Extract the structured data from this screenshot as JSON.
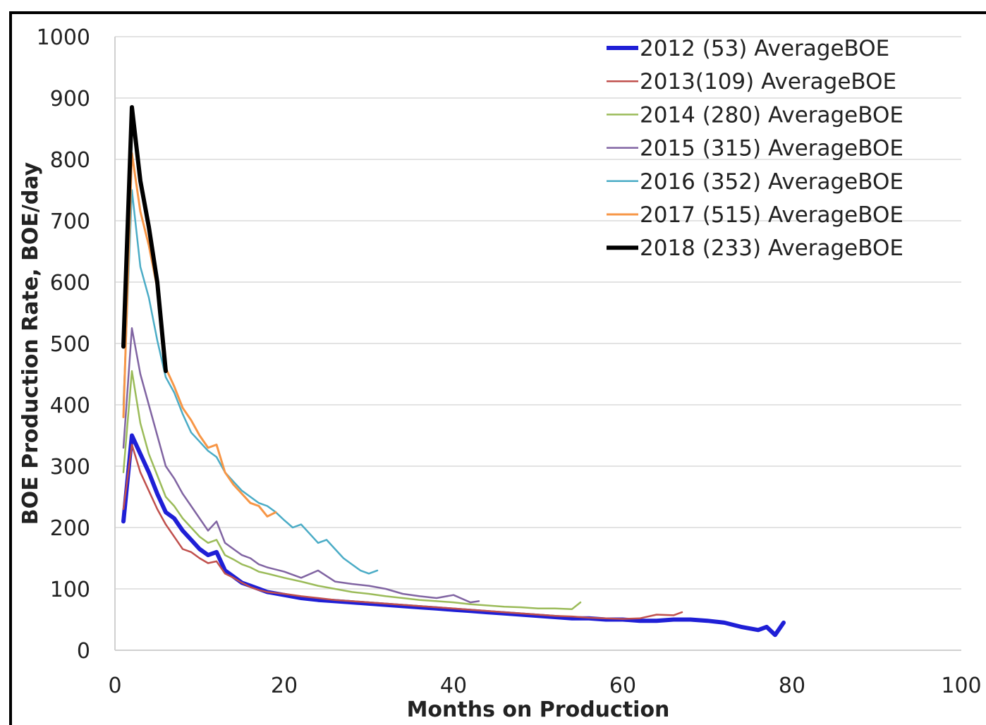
{
  "chart_data": {
    "type": "line",
    "title": "",
    "xlabel": "Months on Production",
    "ylabel": "BOE Production Rate, BOE/day",
    "xlim": [
      0,
      100
    ],
    "ylim": [
      0,
      1000
    ],
    "x_ticks": [
      "0",
      "20",
      "40",
      "60",
      "80",
      "100"
    ],
    "y_ticks": [
      "0",
      "100",
      "200",
      "300",
      "400",
      "500",
      "600",
      "700",
      "800",
      "900",
      "1000"
    ],
    "grid": "horizontal",
    "legend_position": "top-right",
    "series": [
      {
        "name": "2012 (53) AverageBOE",
        "color": "#1f1fd6",
        "width": 6,
        "x": [
          1,
          2,
          3,
          4,
          5,
          6,
          7,
          8,
          9,
          10,
          11,
          12,
          13,
          14,
          15,
          16,
          17,
          18,
          20,
          22,
          24,
          26,
          28,
          30,
          32,
          34,
          36,
          38,
          40,
          42,
          44,
          46,
          48,
          50,
          52,
          54,
          56,
          58,
          60,
          62,
          64,
          66,
          68,
          70,
          72,
          74,
          76,
          77,
          78,
          79
        ],
        "y": [
          210,
          350,
          320,
          290,
          255,
          225,
          215,
          195,
          180,
          165,
          155,
          160,
          130,
          120,
          110,
          105,
          100,
          95,
          90,
          85,
          82,
          80,
          78,
          76,
          74,
          72,
          70,
          68,
          66,
          64,
          62,
          60,
          58,
          56,
          54,
          52,
          52,
          50,
          50,
          48,
          48,
          50,
          50,
          48,
          45,
          38,
          33,
          38,
          25,
          45
        ]
      },
      {
        "name": "2013(109) AverageBOE",
        "color": "#c0504d",
        "width": 2.5,
        "x": [
          1,
          2,
          3,
          4,
          5,
          6,
          7,
          8,
          9,
          10,
          11,
          12,
          13,
          14,
          15,
          16,
          17,
          18,
          20,
          22,
          24,
          26,
          28,
          30,
          32,
          34,
          36,
          38,
          40,
          42,
          44,
          46,
          48,
          50,
          52,
          54,
          56,
          58,
          60,
          62,
          64,
          66,
          67
        ],
        "y": [
          230,
          335,
          290,
          260,
          230,
          205,
          185,
          165,
          160,
          150,
          142,
          145,
          125,
          118,
          110,
          103,
          98,
          95,
          92,
          88,
          85,
          82,
          80,
          78,
          76,
          74,
          72,
          70,
          68,
          66,
          64,
          62,
          60,
          58,
          56,
          55,
          53,
          52,
          51,
          52,
          58,
          57,
          62
        ]
      },
      {
        "name": "2014 (280) AverageBOE",
        "color": "#9bbb59",
        "width": 2.5,
        "x": [
          1,
          2,
          3,
          4,
          5,
          6,
          7,
          8,
          9,
          10,
          11,
          12,
          13,
          14,
          15,
          16,
          17,
          18,
          20,
          22,
          24,
          26,
          28,
          30,
          32,
          34,
          36,
          38,
          40,
          42,
          44,
          46,
          48,
          50,
          52,
          54,
          55
        ],
        "y": [
          290,
          455,
          370,
          320,
          285,
          250,
          235,
          215,
          200,
          185,
          175,
          180,
          155,
          148,
          140,
          135,
          128,
          125,
          118,
          112,
          105,
          100,
          95,
          92,
          88,
          85,
          82,
          80,
          78,
          75,
          73,
          71,
          70,
          68,
          68,
          67,
          78
        ]
      },
      {
        "name": "2015 (315) AverageBOE",
        "color": "#8064a2",
        "width": 2.5,
        "x": [
          1,
          2,
          3,
          4,
          5,
          6,
          7,
          8,
          9,
          10,
          11,
          12,
          13,
          14,
          15,
          16,
          17,
          18,
          20,
          22,
          24,
          26,
          28,
          30,
          32,
          34,
          36,
          38,
          40,
          42,
          43
        ],
        "y": [
          330,
          525,
          450,
          400,
          350,
          300,
          280,
          255,
          235,
          215,
          195,
          210,
          175,
          165,
          155,
          150,
          140,
          135,
          128,
          118,
          130,
          112,
          108,
          105,
          100,
          92,
          88,
          85,
          90,
          78,
          80
        ]
      },
      {
        "name": "2016 (352) AverageBOE",
        "color": "#4bacc6",
        "width": 2.5,
        "x": [
          1,
          2,
          3,
          4,
          5,
          6,
          7,
          8,
          9,
          10,
          11,
          12,
          13,
          14,
          15,
          16,
          17,
          18,
          19,
          20,
          21,
          22,
          23,
          24,
          25,
          26,
          27,
          28,
          29,
          30,
          31
        ],
        "y": [
          400,
          750,
          625,
          575,
          505,
          445,
          420,
          385,
          355,
          340,
          325,
          315,
          290,
          275,
          260,
          250,
          240,
          235,
          225,
          212,
          200,
          205,
          190,
          175,
          180,
          165,
          150,
          140,
          130,
          125,
          130
        ]
      },
      {
        "name": "2017 (515) AverageBOE",
        "color": "#f79646",
        "width": 3,
        "x": [
          1,
          2,
          3,
          4,
          5,
          6,
          7,
          8,
          9,
          10,
          11,
          12,
          13,
          14,
          15,
          16,
          17,
          18,
          19
        ],
        "y": [
          380,
          810,
          715,
          660,
          590,
          460,
          430,
          395,
          375,
          350,
          330,
          335,
          290,
          270,
          255,
          240,
          235,
          218,
          225
        ]
      },
      {
        "name": "2018 (233) AverageBOE",
        "color": "#000000",
        "width": 6,
        "x": [
          1,
          2,
          3,
          4,
          5,
          6
        ],
        "y": [
          495,
          885,
          765,
          690,
          600,
          455
        ]
      }
    ]
  }
}
